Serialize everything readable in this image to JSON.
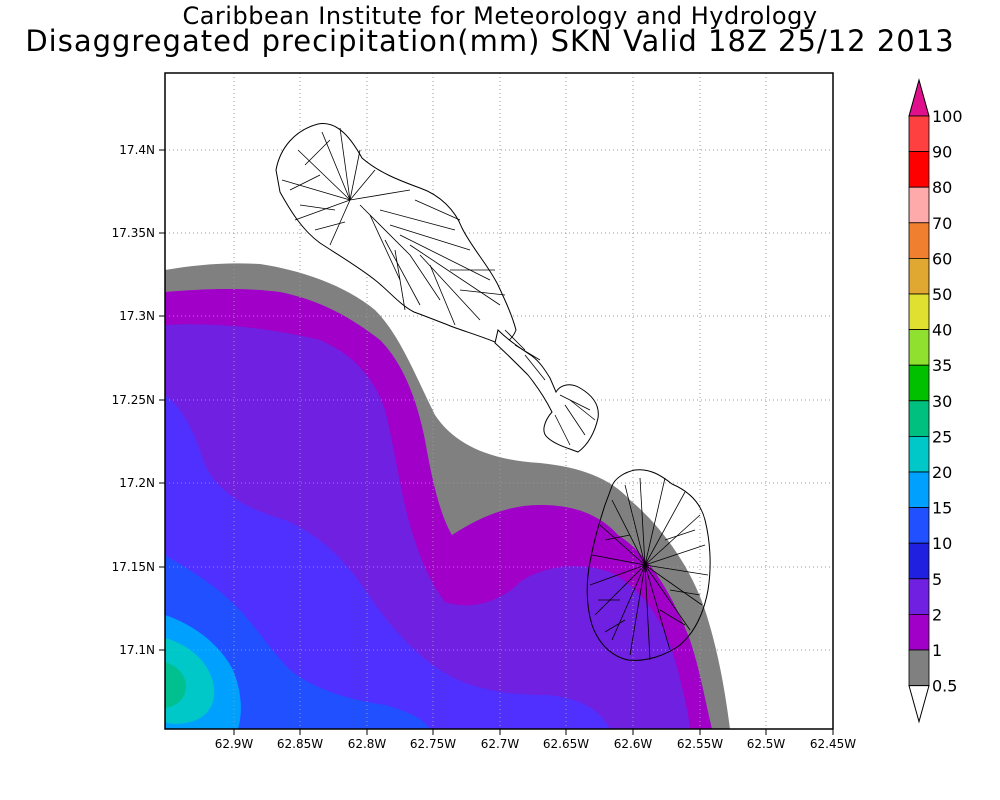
{
  "title": {
    "line1": "Caribbean Institute for Meteorology and Hydrology",
    "line2": "Disaggregated precipitation(mm) SKN Valid 18Z 25/12 2013"
  },
  "axes": {
    "lon_ticks": [
      "62.9W",
      "62.85W",
      "62.8W",
      "62.75W",
      "62.7W",
      "62.65W",
      "62.6W",
      "62.55W",
      "62.5W",
      "62.45W"
    ],
    "lat_ticks": [
      "17.4N",
      "17.35N",
      "17.3N",
      "17.25N",
      "17.2N",
      "17.15N",
      "17.1N"
    ]
  },
  "legend": {
    "levels": [
      "100",
      "90",
      "80",
      "70",
      "60",
      "50",
      "40",
      "35",
      "30",
      "25",
      "20",
      "15",
      "10",
      "5",
      "2",
      "1",
      "0.5"
    ],
    "colors": [
      "#ff4040",
      "#ff0000",
      "#ffaaaa",
      "#f08030",
      "#e0a830",
      "#e0e030",
      "#90e030",
      "#00c000",
      "#00c080",
      "#00c8c8",
      "#00a0ff",
      "#2050ff",
      "#2020e0",
      "#7020e0",
      "#a000c8",
      "#808080"
    ],
    "top_arrow_color": "#e0108c",
    "bottom_arrow_color": "#ffffff"
  },
  "chart_data": {
    "type": "heatmap",
    "title": "Disaggregated precipitation(mm) SKN Valid 18Z 25/12 2013",
    "variable": "precipitation",
    "units": "mm",
    "region": "SKN",
    "valid_time": "18Z 25/12 2013",
    "xlim": [
      -62.95,
      -62.45
    ],
    "ylim": [
      17.05,
      17.45
    ],
    "contour_levels": [
      0.5,
      1,
      2,
      5,
      10,
      15,
      20,
      25,
      30,
      35,
      40,
      50,
      60,
      70,
      80,
      90,
      100
    ],
    "max_value_region": "southwest corner, 20-25 mm near 62.94W 17.08N",
    "grid": true
  }
}
